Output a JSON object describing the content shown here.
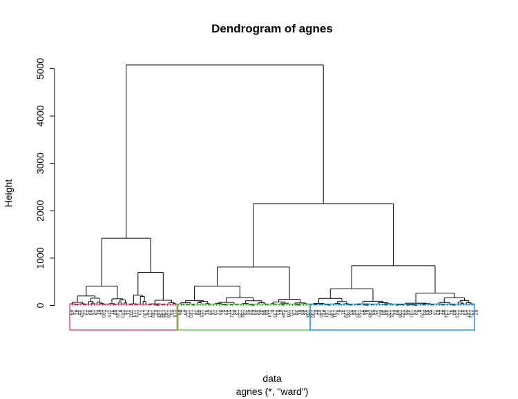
{
  "chart_data": {
    "type": "dendrogram",
    "title": "Dendrogram of agnes",
    "xlabel": "data",
    "sublabel": "agnes (*, \"ward\")",
    "ylabel": "Height",
    "ylim": [
      0,
      5100
    ],
    "yticks": [
      0,
      1000,
      2000,
      3000,
      4000,
      5000
    ],
    "leaf_count": 150,
    "root_height": 5080,
    "merges": [
      {
        "left": "A",
        "right": "BC",
        "height": 5080
      },
      {
        "left": "B",
        "right": "C",
        "height": 2150
      },
      {
        "left": "A1",
        "right": "A2",
        "height": 1420
      },
      {
        "left": "C1",
        "right": "C2",
        "height": 840
      },
      {
        "left": "B1",
        "right": "B2",
        "height": 810
      },
      {
        "left": "A2a",
        "right": "A2b",
        "height": 700
      },
      {
        "left": "A1a",
        "right": "A1b",
        "height": 410
      },
      {
        "left": "B1a",
        "right": "B1b",
        "height": 410
      },
      {
        "left": "C1a",
        "right": "C1b",
        "height": 350
      },
      {
        "left": "C2a",
        "right": "C2b",
        "height": 260
      }
    ],
    "clusters": [
      {
        "id": 1,
        "color": "#DF536B",
        "leaves": "1-40"
      },
      {
        "id": 2,
        "color": "#61D04F",
        "leaves": "41-89"
      },
      {
        "id": 3,
        "color": "#2297E6",
        "leaves": "90-150"
      }
    ],
    "divider_color": "#9E9E3A"
  }
}
